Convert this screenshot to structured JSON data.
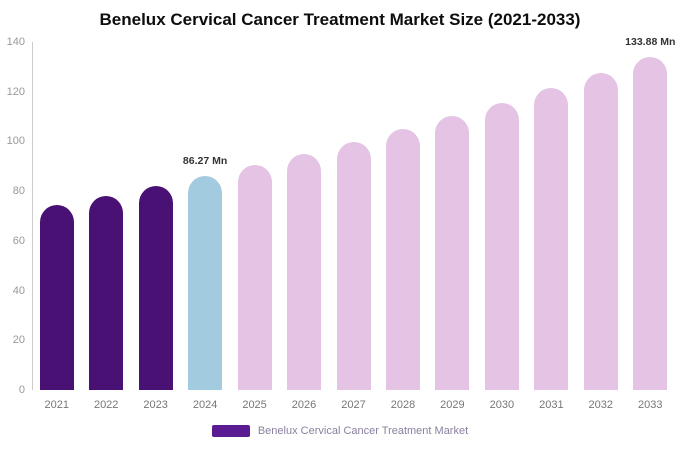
{
  "chart_data": {
    "type": "bar",
    "title": "Benelux Cervical Cancer Treatment Market Size (2021-2033)",
    "xlabel": "",
    "ylabel": "",
    "categories": [
      "2021",
      "2022",
      "2023",
      "2024",
      "2025",
      "2026",
      "2027",
      "2028",
      "2029",
      "2030",
      "2031",
      "2032",
      "2033"
    ],
    "values": [
      74.5,
      78.2,
      82.2,
      86.27,
      90.6,
      95.1,
      99.9,
      104.9,
      110.1,
      115.6,
      121.4,
      127.5,
      133.88
    ],
    "bar_styles": [
      "past",
      "past",
      "past",
      "highlight",
      "forecast",
      "forecast",
      "forecast",
      "forecast",
      "forecast",
      "forecast",
      "forecast",
      "forecast",
      "forecast"
    ],
    "colors": {
      "past": "#4a1174",
      "highlight": "#a2cbe0",
      "forecast": "#e4c3e4",
      "axis_line": "#cccccc"
    },
    "point_labels": {
      "2024": "86.27 Mn",
      "2033": "133.88 Mn"
    },
    "ylim": [
      0,
      140
    ],
    "yticks": [
      0,
      20,
      40,
      60,
      80,
      100,
      120,
      140
    ],
    "grid": false,
    "legend_position": "bottom"
  },
  "legend": {
    "swatch_color": "#5b1b93",
    "label": "Benelux Cervical Cancer Treatment Market"
  }
}
